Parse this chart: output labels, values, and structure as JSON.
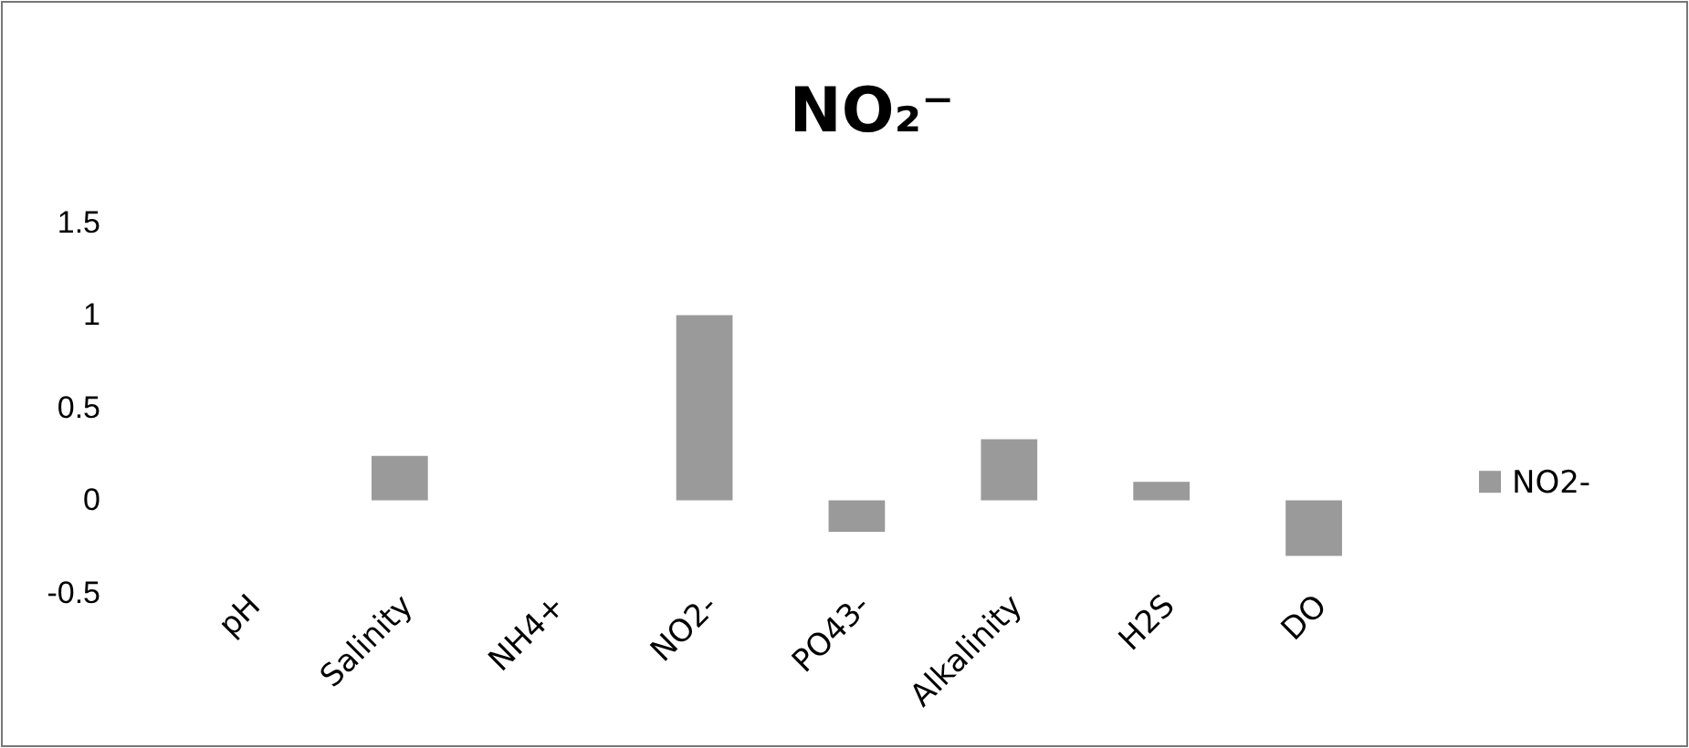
{
  "chart_data": {
    "type": "bar",
    "title": "NO₂⁻",
    "categories": [
      "pH",
      "Salinity",
      "NH4+",
      "NO2-",
      "PO43-",
      "Alkalinity",
      "H2S",
      "DO"
    ],
    "series": [
      {
        "name": "NO2-",
        "color": "#9a9a9a",
        "values": [
          0,
          0.24,
          0,
          1.0,
          -0.17,
          0.33,
          0.1,
          -0.3
        ]
      }
    ],
    "ylim": [
      -0.5,
      1.5
    ],
    "yticks": [
      -0.5,
      0,
      0.5,
      1,
      1.5
    ],
    "grid": false,
    "legend": "right"
  }
}
